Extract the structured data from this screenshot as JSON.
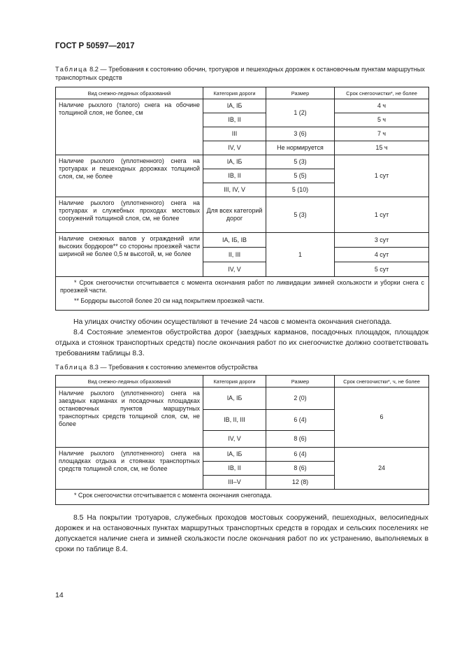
{
  "header": "ГОСТ Р 50597—2017",
  "t82": {
    "label": "Таблица",
    "caption": " 8.2 — Требования к состоянию обочин, тротуаров и пешеходных дорожек к остановочным пунктам маршрутных транспортных средств",
    "cols": [
      "Вид снежно-ледяных образований",
      "Категория дороги",
      "Размер",
      "Срок снегоочистки*, не более"
    ],
    "g1": {
      "desc": "Наличие рыхлого (талого) снега на обочине толщиной слоя, не более, см",
      "r": [
        [
          "IA, IБ",
          "1 (2)",
          "4 ч"
        ],
        [
          "IB, II",
          "",
          "5 ч"
        ],
        [
          "III",
          "3 (6)",
          "7 ч"
        ],
        [
          "IV, V",
          "Не нормируется",
          "15 ч"
        ]
      ]
    },
    "g2": {
      "desc": "Наличие рыхлого (уплотненного) снега на тротуарах и пешеходных дорожках толщиной слоя, см, не более",
      "r": [
        [
          "IA, IБ",
          "5 (3)"
        ],
        [
          "IB, II",
          "5 (5)"
        ],
        [
          "III, IV, V",
          "5 (10)"
        ]
      ],
      "time": "1 сут"
    },
    "g3": {
      "desc": "Наличие рыхлого (уплотненного) снега на тротуарах и служебных проходах мостовых сооружений толщиной слоя, см, не более",
      "cat": "Для всех категорий дорог",
      "size": "5 (3)",
      "time": "1 сут"
    },
    "g4": {
      "desc": "Наличие снежных валов у ограждений или высоких бордюров** со стороны проезжей части шириной не более 0,5 м высотой, м, не более",
      "size": "1",
      "r": [
        [
          "IA, IБ, IB",
          "3 сут"
        ],
        [
          "II, III",
          "4 сут"
        ],
        [
          "IV, V",
          "5 сут"
        ]
      ]
    },
    "fn1": "* Срок снегоочистки отсчитывается с момента окончания работ по ликвидации зимней скользкости и уборки снега с проезжей части.",
    "fn2": "** Бордюры высотой более 20 см над покрытием проезжей части."
  },
  "p1": "На улицах очистку обочин осуществляют в течение 24 часов с момента окончания снегопада.",
  "p2": "8.4 Состояние элементов обустройства дорог (заездных карманов, посадочных площадок, площадок отдыха и стоянок транспортных средств) после окончания работ по их снегоочистке должно соответствовать требованиям таблицы 8.3.",
  "t83": {
    "label": "Таблица",
    "caption": " 8.3 — Требования к состоянию элементов обустройства",
    "cols": [
      "Вид снежно-ледяных образований",
      "Категория дороги",
      "Размер",
      "Срок снегоочистки*, ч, не более"
    ],
    "g1": {
      "desc": "Наличие рыхлого (уплотненного) снега на заездных карманах и посадочных площадках остановочных пунктов маршрутных транспортных средств толщиной слоя, см, не более",
      "r": [
        [
          "IA, IБ",
          "2 (0)"
        ],
        [
          "IB, II, III",
          "6 (4)"
        ],
        [
          "IV, V",
          "8 (6)"
        ]
      ],
      "time": "6"
    },
    "g2": {
      "desc": "Наличие рыхлого (уплотненного) снега на площадках отдыха и стоянках транспортных средств толщиной слоя, см, не более",
      "r": [
        [
          "IA, IБ",
          "6 (4)"
        ],
        [
          "IB, II",
          "8 (6)"
        ],
        [
          "III–V",
          "12 (8)"
        ]
      ],
      "time": "24"
    },
    "fn1": "* Срок снегоочистки отсчитывается с момента окончания снегопада."
  },
  "p3": "8.5 На покрытии тротуаров, служебных проходов мостовых сооружений, пешеходных, велосипедных дорожек и на остановочных пунктах маршрутных транспортных средств в городах и сельских поселениях не допускается наличие снега и зимней скользкости после окончания работ по их устранению, выполняемых в сроки по таблице 8.4.",
  "page_number": "14"
}
